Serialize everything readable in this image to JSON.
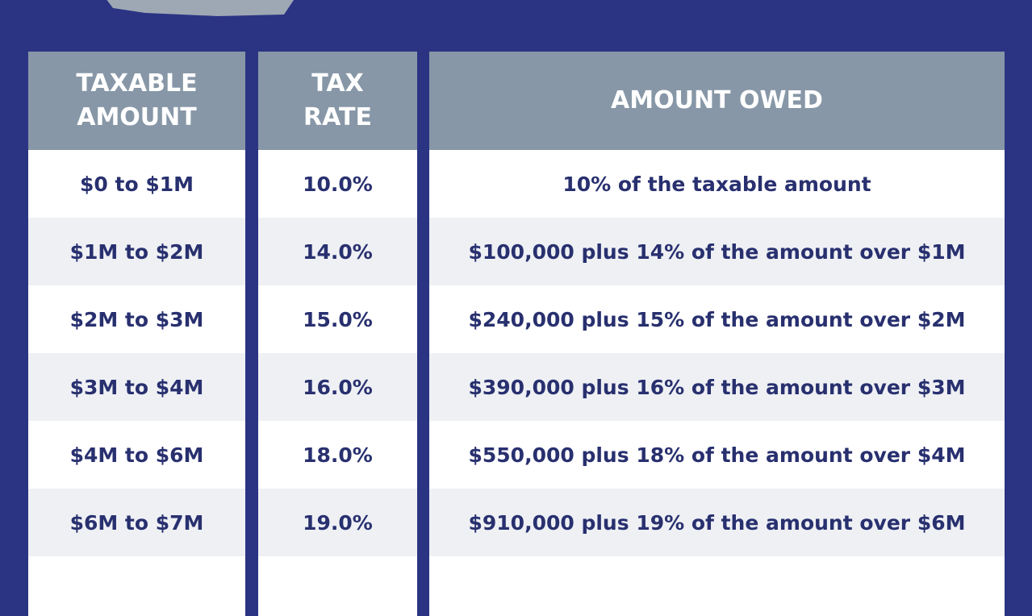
{
  "table": {
    "headers": {
      "taxable_amount": [
        "TAXABLE",
        "AMOUNT"
      ],
      "tax_rate": [
        "TAX",
        "RATE"
      ],
      "amount_owed": "AMOUNT OWED"
    },
    "rows": [
      {
        "taxable": "$0 to $1M",
        "rate": "10.0%",
        "owed": "10% of the taxable amount"
      },
      {
        "taxable": "$1M to $2M",
        "rate": "14.0%",
        "owed": "$100,000 plus 14% of the amount over $1M"
      },
      {
        "taxable": "$2M to $3M",
        "rate": "15.0%",
        "owed": "$240,000 plus 15% of the amount over $2M"
      },
      {
        "taxable": "$3M to $4M",
        "rate": "16.0%",
        "owed": "$390,000 plus 16% of the amount over $3M"
      },
      {
        "taxable": "$4M to $6M",
        "rate": "18.0%",
        "owed": "$550,000 plus 18% of the amount over $4M"
      },
      {
        "taxable": "$6M to $7M",
        "rate": "19.0%",
        "owed": "$910,000 plus 19% of the amount over $6M"
      },
      {
        "taxable": "",
        "rate": "",
        "owed": ""
      }
    ]
  },
  "colors": {
    "background": "#2b3483",
    "header": "#8797a7",
    "row_light": "#ffffff",
    "row_shaded": "#eef0f4",
    "text": "#28306f"
  }
}
